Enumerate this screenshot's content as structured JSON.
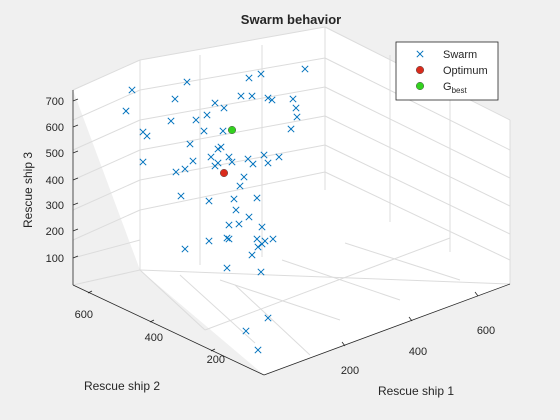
{
  "chart_data": {
    "type": "scatter",
    "title": "Swarm behavior",
    "xlabel": "Rescue ship 1",
    "ylabel": "Rescue ship 2",
    "zlabel": "Rescue ship 3",
    "x_ticks": [
      "200",
      "400",
      "600"
    ],
    "y_ticks": [
      "200",
      "400",
      "600"
    ],
    "z_ticks": [
      "100",
      "200",
      "300",
      "400",
      "500",
      "600",
      "700"
    ],
    "grid": true,
    "legend_position": "top-right",
    "legend": [
      {
        "label": "Swarm",
        "sub": "",
        "marker": "x",
        "color": "#0072bd"
      },
      {
        "label": "Optimum",
        "sub": "",
        "marker": "circle",
        "color": "#d92b1c"
      },
      {
        "label": "G",
        "sub": "best",
        "marker": "circle",
        "color": "#33d11f"
      }
    ],
    "series": [
      {
        "name": "Swarm",
        "marker": "x",
        "color": "#0072bd",
        "points": [
          [
            132,
            90
          ],
          [
            126,
            111
          ],
          [
            143,
            132
          ],
          [
            147,
            136
          ],
          [
            143,
            162
          ],
          [
            175,
            99
          ],
          [
            171,
            121
          ],
          [
            187,
            82
          ],
          [
            196,
            120
          ],
          [
            190,
            144
          ],
          [
            193,
            161
          ],
          [
            176,
            172
          ],
          [
            185,
            169
          ],
          [
            181,
            196
          ],
          [
            215,
            103
          ],
          [
            207,
            115
          ],
          [
            204,
            131
          ],
          [
            224,
            108
          ],
          [
            241,
            96
          ],
          [
            249,
            78
          ],
          [
            261,
            74
          ],
          [
            252,
            96
          ],
          [
            268,
            98
          ],
          [
            272,
            100
          ],
          [
            305,
            69
          ],
          [
            293,
            99
          ],
          [
            296,
            108
          ],
          [
            297,
            117
          ],
          [
            291,
            129
          ],
          [
            279,
            157
          ],
          [
            264,
            155
          ],
          [
            268,
            163
          ],
          [
            253,
            164
          ],
          [
            248,
            159
          ],
          [
            223,
            131
          ],
          [
            221,
            147
          ],
          [
            218,
            149
          ],
          [
            211,
            157
          ],
          [
            218,
            163
          ],
          [
            215,
            166
          ],
          [
            229,
            157
          ],
          [
            232,
            162
          ],
          [
            244,
            177
          ],
          [
            240,
            186
          ],
          [
            234,
            199
          ],
          [
            236,
            210
          ],
          [
            257,
            198
          ],
          [
            209,
            201
          ],
          [
            209,
            241
          ],
          [
            229,
            225
          ],
          [
            239,
            224
          ],
          [
            249,
            217
          ],
          [
            262,
            227
          ],
          [
            257,
            239
          ],
          [
            262,
            244
          ],
          [
            265,
            241
          ],
          [
            273,
            239
          ],
          [
            258,
            247
          ],
          [
            229,
            239
          ],
          [
            227,
            238
          ],
          [
            227,
            268
          ],
          [
            185,
            249
          ],
          [
            252,
            255
          ],
          [
            261,
            272
          ],
          [
            268,
            318
          ],
          [
            246,
            331
          ],
          [
            258,
            350
          ]
        ]
      },
      {
        "name": "Optimum",
        "marker": "circle",
        "color": "#d92b1c",
        "points": [
          [
            224,
            173
          ]
        ]
      },
      {
        "name": "G",
        "sub": "best",
        "marker": "circle",
        "color": "#33d11f",
        "points": [
          [
            232,
            130
          ]
        ]
      }
    ]
  }
}
